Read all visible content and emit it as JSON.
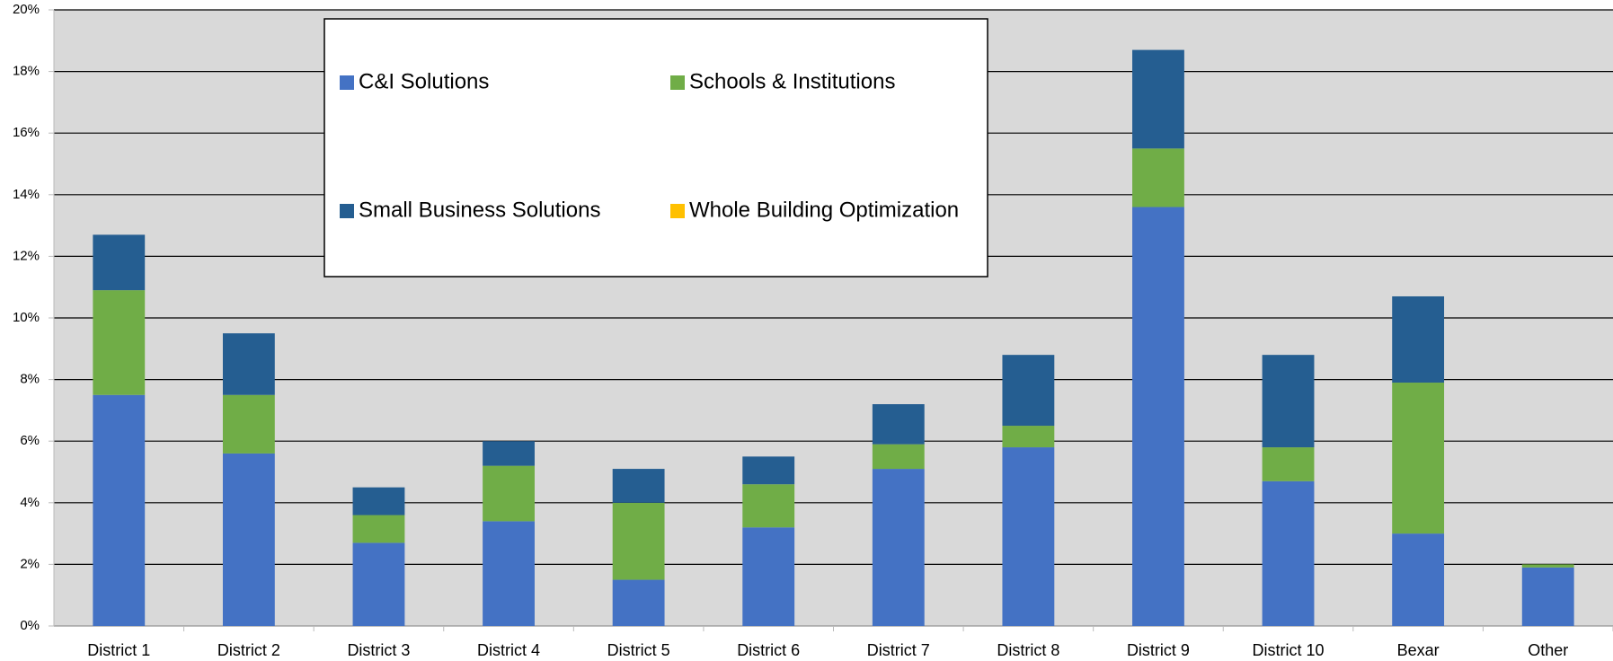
{
  "chart_data": {
    "type": "bar",
    "stacked": true,
    "categories": [
      "District 1",
      "District 2",
      "District 3",
      "District 4",
      "District 5",
      "District 6",
      "District 7",
      "District 8",
      "District 9",
      "District 10",
      "Bexar",
      "Other"
    ],
    "series": [
      {
        "name": "C&I Solutions",
        "color": "#4472c4",
        "values": [
          7.5,
          5.6,
          2.7,
          3.4,
          1.5,
          3.2,
          5.1,
          5.8,
          13.6,
          4.7,
          3.0,
          1.9
        ]
      },
      {
        "name": "Schools & Institutions",
        "color": "#70ad47",
        "values": [
          3.4,
          1.9,
          0.9,
          1.8,
          2.5,
          1.4,
          0.8,
          0.7,
          1.9,
          1.1,
          4.9,
          0.1
        ]
      },
      {
        "name": "Small Business Solutions",
        "color": "#255e91",
        "values": [
          1.8,
          2.0,
          0.9,
          0.8,
          1.1,
          0.9,
          1.3,
          2.3,
          3.2,
          3.0,
          2.8,
          0
        ]
      },
      {
        "name": "Whole Building Optimization",
        "color": "#ffc000",
        "values": [
          0,
          0,
          0,
          0,
          0,
          0,
          0,
          0,
          0,
          0,
          0,
          0
        ]
      }
    ],
    "ylim": [
      0,
      20
    ],
    "yticks": [
      {
        "value": 0,
        "label": "0%"
      },
      {
        "value": 2,
        "label": "2%"
      },
      {
        "value": 4,
        "label": "4%"
      },
      {
        "value": 6,
        "label": "6%"
      },
      {
        "value": 8,
        "label": "8%"
      },
      {
        "value": 10,
        "label": "10%"
      },
      {
        "value": 12,
        "label": "12%"
      },
      {
        "value": 14,
        "label": "14%"
      },
      {
        "value": 16,
        "label": "16%"
      },
      {
        "value": 18,
        "label": "18%"
      },
      {
        "value": 20,
        "label": "20%"
      }
    ],
    "grid": true,
    "plot_background": "#d9d9d9"
  }
}
